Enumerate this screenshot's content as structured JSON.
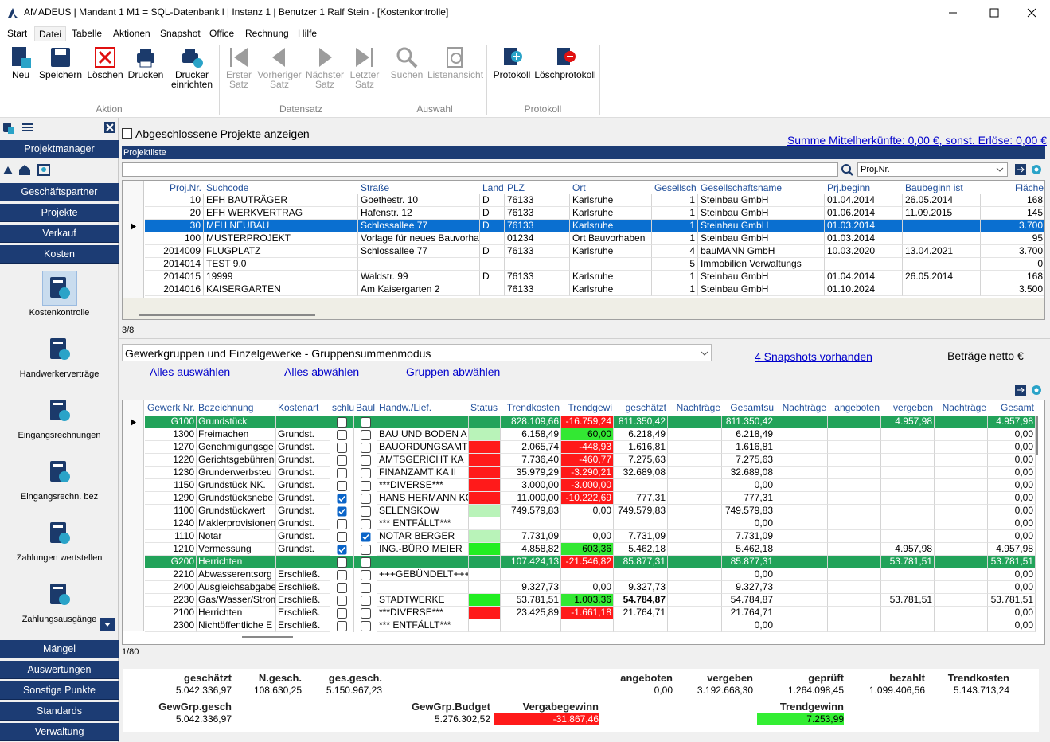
{
  "window": {
    "title": "AMADEUS | Mandant 1 M1 = SQL-Datenbank l | Instanz 1 | Benutzer 1 Ralf Stein - [Kostenkontrolle]"
  },
  "menu": [
    "Start",
    "Datei",
    "Tabelle",
    "Aktionen",
    "Snapshot",
    "Office",
    "Rechnung",
    "Hilfe"
  ],
  "ribbon": {
    "groups": [
      {
        "label": "Aktion",
        "buttons": [
          "Neu",
          "Speichern",
          "Löschen",
          "Drucken",
          "Drucker einrichten"
        ]
      },
      {
        "label": "Datensatz",
        "buttons": [
          "Erster Satz",
          "Vorheriger Satz",
          "Nächster Satz",
          "Letzter Satz"
        ]
      },
      {
        "label": "Auswahl",
        "buttons": [
          "Suchen",
          "Listenansicht"
        ]
      },
      {
        "label": "Protokoll",
        "buttons": [
          "Protokoll",
          "Löschprotokoll"
        ]
      }
    ]
  },
  "sidebar": {
    "header": "Projektmanager",
    "nav": [
      "Geschäftspartner",
      "Projekte",
      "Verkauf",
      "Kosten"
    ],
    "items": [
      "Kostenkontrolle",
      "Handwerkerverträge",
      "Eingangsrechnungen",
      "Eingangsrechn. bez",
      "Zahlungen wertstellen",
      "Zahlungsausgänge"
    ],
    "bottom": [
      "Mängel",
      "Auswertungen",
      "Sonstige Punkte",
      "Standards",
      "Verwaltung"
    ]
  },
  "projects": {
    "show_closed": "Abgeschlossene Projekte anzeigen",
    "sum_link": "Summe Mittelherkünfte: 0,00 €, sonst. Erlöse: 0,00 €",
    "panel_title": "Projektliste",
    "search_field": "Proj.Nr.",
    "columns": [
      "Proj.Nr.",
      "Suchcode",
      "Straße",
      "Land",
      "PLZ",
      "Ort",
      "Gesellsch",
      "Gesellschaftsname",
      "Prj.beginn",
      "Baubeginn ist",
      "Fläche"
    ],
    "rows": [
      [
        "10",
        "EFH BAUTRÄGER",
        "Goethestr. 10",
        "D",
        "76133",
        "Karlsruhe",
        "1",
        "Steinbau GmbH",
        "01.04.2014",
        "26.05.2014",
        "168"
      ],
      [
        "20",
        "EFH WERKVERTRAG",
        "Hafenstr. 12",
        "D",
        "76133",
        "Karlsruhe",
        "1",
        "Steinbau GmbH",
        "01.06.2014",
        "11.09.2015",
        "145"
      ],
      [
        "30",
        "MFH NEUBAU",
        "Schlossallee 77",
        "D",
        "76133",
        "Karlsruhe",
        "1",
        "Steinbau GmbH",
        "01.03.2014",
        null,
        "3.700"
      ],
      [
        "100",
        "MUSTERPROJEKT",
        "Vorlage für neues Bauvorha",
        null,
        "01234",
        "Ort Bauvorhaben",
        "1",
        "Steinbau GmbH",
        "01.03.2014",
        null,
        "95"
      ],
      [
        "2014009",
        "FLUGPLATZ",
        "Schlossallee 77",
        "D",
        "76133",
        "Karlsruhe",
        "4",
        "bauMANN GmbH",
        "10.03.2020",
        "13.04.2021",
        "3.700"
      ],
      [
        "2014014",
        "TEST 9.0",
        null,
        null,
        null,
        null,
        "5",
        "Immobilien Verwaltungs",
        null,
        null,
        "0"
      ],
      [
        "2014015",
        "19999",
        "Waldstr. 99",
        "D",
        "76133",
        "Karlsruhe",
        "1",
        "Steinbau GmbH",
        "01.04.2014",
        "26.05.2014",
        "168"
      ],
      [
        "2014016",
        "KAISERGARTEN",
        "Am Kaisergarten 2",
        null,
        "76133",
        "Karlsruhe",
        "1",
        "Steinbau GmbH",
        "01.10.2024",
        null,
        "3.500"
      ]
    ],
    "selected_row": 2,
    "count": "3/8"
  },
  "trades": {
    "mode": "Gewerkgruppen und Einzelgewerke - Gruppensummenmodus",
    "snapshots_link": "4 Snapshots vorhanden",
    "net_note": "Beträge netto €",
    "links": [
      "Alles auswählen",
      "Alles abwählen",
      "Gruppen abwählen"
    ],
    "columns": [
      "Gewerk Nr.",
      "Bezeichnung",
      "Kostenart",
      "schlu",
      "Baul",
      "Handw./Lief.",
      "Status",
      "Trendkosten",
      "Trendgewi",
      "geschätzt",
      "Nachträge",
      "Gesamtsu",
      "Nachträge",
      "angeboten",
      "vergeben",
      "Nachträge",
      "Gesamt"
    ],
    "rows": [
      {
        "group": true,
        "checks": [
          false,
          false
        ],
        "status_color": "#22a35a",
        "trend_color": "#ff1a1a",
        "cells": [
          "G100",
          "Grundstück",
          null,
          null,
          "828.109,66",
          "-16.759,24",
          "811.350,42",
          null,
          "811.350,42",
          null,
          null,
          "4.957,98",
          null,
          "4.957,98"
        ]
      },
      {
        "group": false,
        "checks": [
          false,
          false
        ],
        "status_color": "#b9f3b9",
        "trend_color": "#33e833",
        "cells": [
          "1300",
          "Freimachen",
          "Grundst.",
          "BAU UND BODEN A",
          "6.158,49",
          "60,00",
          "6.218,49",
          null,
          "6.218,49",
          null,
          null,
          null,
          null,
          "0,00"
        ]
      },
      {
        "group": false,
        "checks": [
          false,
          false
        ],
        "status_color": "#ff1a1a",
        "trend_color": "#ff1a1a",
        "cells": [
          "1270",
          "Genehmigungsge",
          "Grundst.",
          "BAUORDUNGSAMT K",
          "2.065,74",
          "-448,93",
          "1.616,81",
          null,
          "1.616,81",
          null,
          null,
          null,
          null,
          "0,00"
        ]
      },
      {
        "group": false,
        "checks": [
          false,
          false
        ],
        "status_color": "#ff1a1a",
        "trend_color": "#ff1a1a",
        "cells": [
          "1220",
          "Gerichtsgebühren",
          "Grundst.",
          "AMTSGERICHT KA",
          "7.736,40",
          "-460,77",
          "7.275,63",
          null,
          "7.275,63",
          null,
          null,
          null,
          null,
          "0,00"
        ]
      },
      {
        "group": false,
        "checks": [
          false,
          false
        ],
        "status_color": "#ff1a1a",
        "trend_color": "#ff1a1a",
        "cells": [
          "1230",
          "Grunderwerbsteu",
          "Grundst.",
          "FINANZAMT KA II",
          "35.979,29",
          "-3.290,21",
          "32.689,08",
          null,
          "32.689,08",
          null,
          null,
          null,
          null,
          "0,00"
        ]
      },
      {
        "group": false,
        "checks": [
          false,
          false
        ],
        "status_color": "#ff1a1a",
        "trend_color": "#ff1a1a",
        "cells": [
          "1150",
          "Grundstück NK.",
          "Grundst.",
          "***DIVERSE***",
          "3.000,00",
          "-3.000,00",
          null,
          null,
          "0,00",
          null,
          null,
          null,
          null,
          "0,00"
        ]
      },
      {
        "group": false,
        "checks": [
          true,
          false
        ],
        "status_color": "#ff1a1a",
        "trend_color": "#ff1a1a",
        "cells": [
          "1290",
          "Grundstücksnebe",
          "Grundst.",
          "HANS HERMANN KG",
          "11.000,00",
          "-10.222,69",
          "777,31",
          null,
          "777,31",
          null,
          null,
          null,
          null,
          "0,00"
        ]
      },
      {
        "group": false,
        "checks": [
          true,
          false
        ],
        "status_color": "#b9f3b9",
        "trend_color": null,
        "cells": [
          "1100",
          "Grundstückwert",
          "Grundst.",
          "SELENSKOW",
          "749.579,83",
          "0,00",
          "749.579,83",
          null,
          "749.579,83",
          null,
          null,
          null,
          null,
          "0,00"
        ]
      },
      {
        "group": false,
        "checks": [
          false,
          false
        ],
        "status_color": null,
        "trend_color": null,
        "cells": [
          "1240",
          "Maklerprovisionen",
          "Grundst.",
          "*** ENTFÄLLT***",
          null,
          null,
          null,
          null,
          "0,00",
          null,
          null,
          null,
          null,
          "0,00"
        ]
      },
      {
        "group": false,
        "checks": [
          false,
          true
        ],
        "status_color": "#b9f3b9",
        "trend_color": null,
        "cells": [
          "1110",
          "Notar",
          "Grundst.",
          "NOTAR BERGER",
          "7.731,09",
          "0,00",
          "7.731,09",
          null,
          "7.731,09",
          null,
          null,
          null,
          null,
          "0,00"
        ]
      },
      {
        "group": false,
        "checks": [
          true,
          false
        ],
        "status_color": "#22ee22",
        "trend_color": "#33e833",
        "cells": [
          "1210",
          "Vermessung",
          "Grundst.",
          "ING.-BÜRO MEIER",
          "4.858,82",
          "603,36",
          "5.462,18",
          null,
          "5.462,18",
          null,
          null,
          "4.957,98",
          null,
          "4.957,98"
        ]
      },
      {
        "group": true,
        "checks": [
          false,
          false
        ],
        "status_color": "#22a35a",
        "trend_color": "#ff1a1a",
        "cells": [
          "G200",
          "Herrichten",
          null,
          null,
          "107.424,13",
          "-21.546,82",
          "85.877,31",
          null,
          "85.877,31",
          null,
          null,
          "53.781,51",
          null,
          "53.781,51"
        ]
      },
      {
        "group": false,
        "checks": [
          false,
          false
        ],
        "status_color": null,
        "trend_color": null,
        "cells": [
          "2210",
          "Abwasserentsorg",
          "Erschließ.",
          "+++GEBÜNDELT+++",
          null,
          null,
          null,
          null,
          "0,00",
          null,
          null,
          null,
          null,
          "0,00"
        ]
      },
      {
        "group": false,
        "checks": [
          false,
          false
        ],
        "status_color": null,
        "trend_color": null,
        "cells": [
          "2400",
          "Ausgleichsabgabe",
          "Erschließ.",
          null,
          "9.327,73",
          "0,00",
          "9.327,73",
          null,
          "9.327,73",
          null,
          null,
          null,
          null,
          "0,00"
        ]
      },
      {
        "group": false,
        "checks": [
          false,
          false
        ],
        "status_color": "#22ee22",
        "trend_color": "#33e833",
        "cells": [
          "2230",
          "Gas/Wasser/Strom",
          "Erschließ.",
          "STADTWERKE",
          "53.781,51",
          "1.003,36",
          "54.784,87",
          null,
          "54.784,87",
          null,
          null,
          "53.781,51",
          null,
          "53.781,51"
        ]
      },
      {
        "group": false,
        "checks": [
          false,
          false
        ],
        "status_color": "#ff1a1a",
        "trend_color": "#ff1a1a",
        "cells": [
          "2100",
          "Herrichten",
          "Erschließ.",
          "***DIVERSE***",
          "23.425,89",
          "-1.661,18",
          "21.764,71",
          null,
          "21.764,71",
          null,
          null,
          null,
          null,
          "0,00"
        ]
      },
      {
        "group": false,
        "checks": [
          false,
          false
        ],
        "status_color": null,
        "trend_color": null,
        "cells": [
          "2300",
          "Nichtöffentliche E",
          "Erschließ.",
          "*** ENTFÄLLT***",
          null,
          null,
          null,
          null,
          "0,00",
          null,
          null,
          null,
          null,
          "0,00"
        ]
      }
    ],
    "count": "1/80"
  },
  "summary": [
    {
      "label": "geschätzt",
      "value": "5.042.336,97",
      "color": null
    },
    {
      "label": "N.gesch.",
      "value": "108.630,25",
      "color": null
    },
    {
      "label": "ges.gesch.",
      "value": "5.150.967,23",
      "color": null
    },
    {
      "label": "angeboten",
      "value": "0,00",
      "color": null
    },
    {
      "label": "vergeben",
      "value": "3.192.668,30",
      "color": null
    },
    {
      "label": "geprüft",
      "value": "1.264.098,45",
      "color": null
    },
    {
      "label": "bezahlt",
      "value": "1.099.406,56",
      "color": null
    },
    {
      "label": "Trendkosten",
      "value": "5.143.713,24",
      "color": null
    },
    {
      "label": "GewGrp.gesch",
      "value": "5.042.336,97",
      "color": null
    },
    {
      "label": "GewGrp.Budget",
      "value": "5.276.302,52",
      "color": null
    },
    {
      "label": "Vergabegewinn",
      "value": "-31.867,46",
      "color": "#ff1a1a"
    },
    {
      "label": "Trendgewinn",
      "value": "7.253,99",
      "color": "#33ee33"
    }
  ]
}
